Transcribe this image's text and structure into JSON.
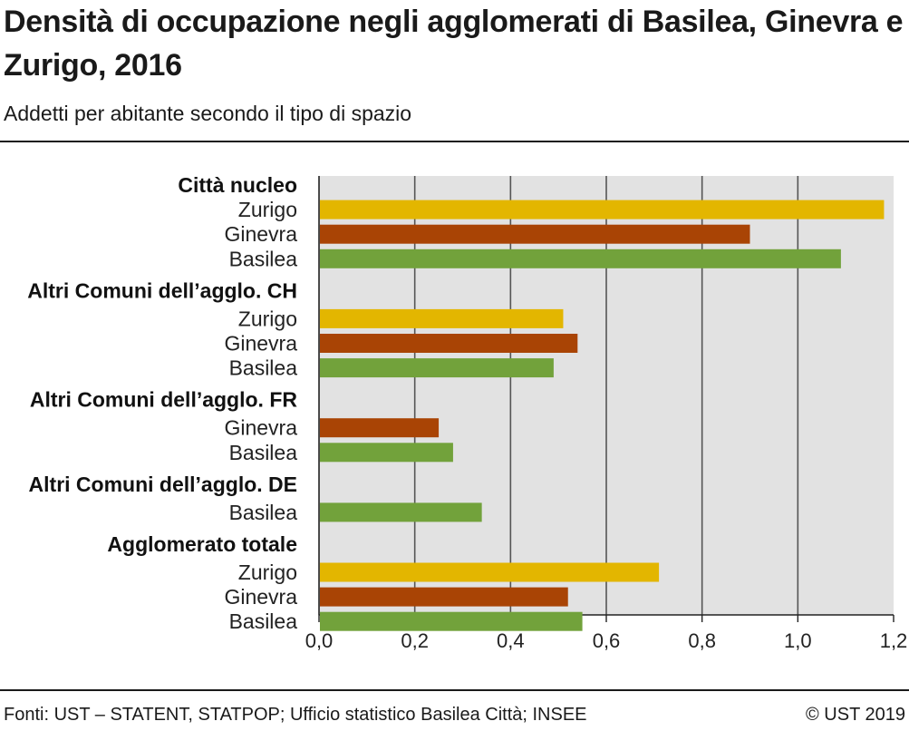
{
  "header": {
    "title": "Densità di occupazione negli agglomerati di Basilea, Ginevra e Zurigo, 2016",
    "subtitle": "Addetti per abitante secondo il tipo di spazio"
  },
  "footer": {
    "source": "Fonti: UST – STATENT, STATPOP; Ufficio statistico Basilea Città; INSEE",
    "copyright": "© UST 2019"
  },
  "colors": {
    "Zurigo": "#e3b600",
    "Ginevra": "#a94405",
    "Basilea": "#72a23b",
    "plot_background": "#e2e2e2",
    "gridline": "#555555"
  },
  "chart_data": {
    "type": "bar",
    "orientation": "horizontal",
    "xlim": [
      0,
      1.2
    ],
    "xticks": [
      "0,0",
      "0,2",
      "0,4",
      "0,6",
      "0,8",
      "1,0",
      "1,2"
    ],
    "grid": true,
    "groups": [
      {
        "label": "Città nucleo",
        "bars": [
          {
            "name": "Zurigo",
            "value": 1.18
          },
          {
            "name": "Ginevra",
            "value": 0.9
          },
          {
            "name": "Basilea",
            "value": 1.09
          }
        ]
      },
      {
        "label": "Altri Comuni dell’agglo. CH",
        "bars": [
          {
            "name": "Zurigo",
            "value": 0.51
          },
          {
            "name": "Ginevra",
            "value": 0.54
          },
          {
            "name": "Basilea",
            "value": 0.49
          }
        ]
      },
      {
        "label": "Altri Comuni dell’agglo. FR",
        "bars": [
          {
            "name": "Ginevra",
            "value": 0.25
          },
          {
            "name": "Basilea",
            "value": 0.28
          }
        ]
      },
      {
        "label": "Altri Comuni dell’agglo. DE",
        "bars": [
          {
            "name": "Basilea",
            "value": 0.34
          }
        ]
      },
      {
        "label": "Agglomerato totale",
        "bars": [
          {
            "name": "Zurigo",
            "value": 0.71
          },
          {
            "name": "Ginevra",
            "value": 0.52
          },
          {
            "name": "Basilea",
            "value": 0.55
          }
        ]
      }
    ]
  }
}
